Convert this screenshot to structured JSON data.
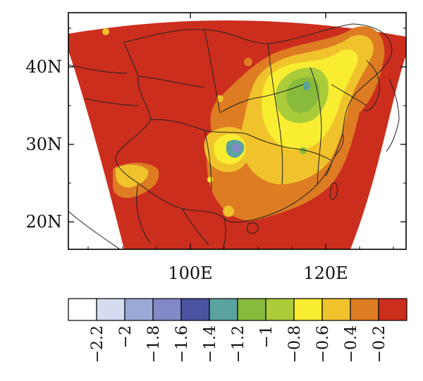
{
  "map": {
    "projection": "lambert-conformal",
    "region": "China and surrounding East Asia",
    "lat_ticks": [
      "20N",
      "30N",
      "40N"
    ],
    "lon_ticks": [
      "100E",
      "120E"
    ],
    "background_color": "#cc2e1e",
    "boundary_color": "#222222"
  },
  "legend": {
    "colors": [
      "#ffffff",
      "#d6dcf0",
      "#9aaad6",
      "#8389c6",
      "#4a53a0",
      "#5aa39e",
      "#88bb3c",
      "#aacb3a",
      "#f8ed31",
      "#f0c32c",
      "#dd7c22",
      "#cc2e1e"
    ],
    "labels": [
      "−2.2",
      "−2",
      "−1.8",
      "−1.6",
      "−1.4",
      "−1.2",
      "−1",
      "−0.8",
      "−0.6",
      "−0.4",
      "−0.2"
    ]
  }
}
